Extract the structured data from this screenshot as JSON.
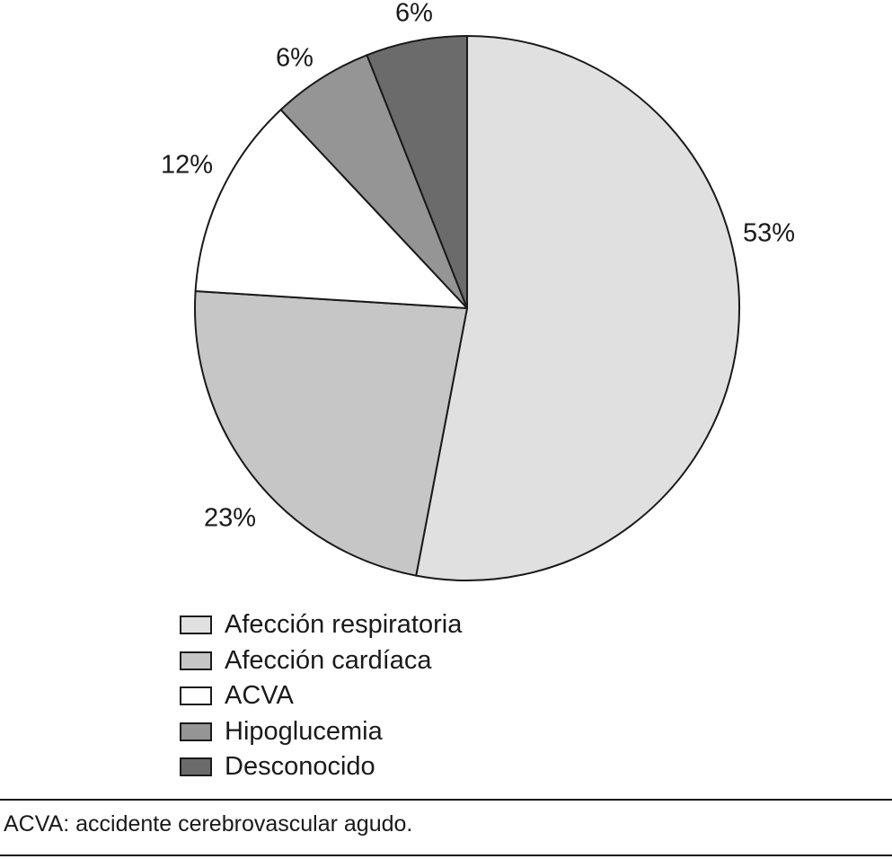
{
  "chart_data": {
    "type": "pie",
    "categories": [
      "Afección respiratoria",
      "Afección cardíaca",
      "ACVA",
      "Hipoglucemia",
      "Desconocido"
    ],
    "values": [
      53,
      23,
      12,
      6,
      6
    ],
    "value_labels": [
      "53%",
      "23%",
      "12%",
      "6%",
      "6%"
    ],
    "colors": [
      "#e0e0e0",
      "#c6c6c6",
      "#ffffff",
      "#959595",
      "#6b6b6b"
    ],
    "start": "12 o'clock",
    "direction": "clockwise",
    "legend_position": "bottom-left",
    "legend": [
      {
        "label": "Afección respiratoria",
        "color": "#e0e0e0"
      },
      {
        "label": "Afección cardíaca",
        "color": "#c6c6c6"
      },
      {
        "label": "ACVA",
        "color": "#ffffff"
      },
      {
        "label": "Hipoglucemia",
        "color": "#959595"
      },
      {
        "label": "Desconocido",
        "color": "#6b6b6b"
      }
    ]
  },
  "footnote": "ACVA: accidente cerebrovascular agudo."
}
